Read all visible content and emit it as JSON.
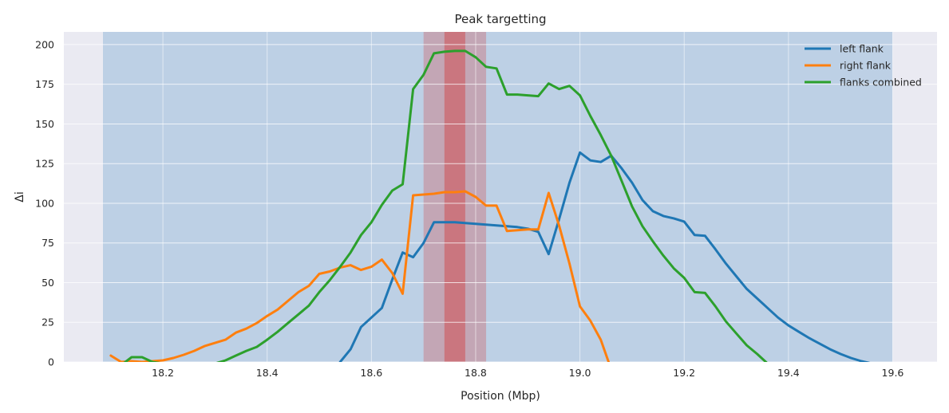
{
  "chart_data": {
    "type": "line",
    "title": "Peak targetting",
    "xlabel": "Position (Mbp)",
    "ylabel": "Δi",
    "xlim": [
      18.01,
      19.685
    ],
    "ylim": [
      0,
      208
    ],
    "xticks": [
      18.2,
      18.4,
      18.6,
      18.8,
      19.0,
      19.2,
      19.4,
      19.6
    ],
    "xtick_labels": [
      "18.2",
      "18.4",
      "18.6",
      "18.8",
      "19.0",
      "19.2",
      "19.4",
      "19.6"
    ],
    "yticks": [
      0,
      25,
      50,
      75,
      100,
      125,
      150,
      175,
      200
    ],
    "ytick_labels": [
      "0",
      "25",
      "50",
      "75",
      "100",
      "125",
      "150",
      "175",
      "200"
    ],
    "grid": true,
    "legend_position": "top-right",
    "spans": [
      {
        "from": 18.085,
        "to": 19.6,
        "color": "#1f77b4",
        "opacity": 0.22
      },
      {
        "from": 18.7,
        "to": 18.82,
        "color": "#d62728",
        "opacity": 0.25
      },
      {
        "from": 18.74,
        "to": 18.78,
        "color": "#d62728",
        "opacity": 0.38
      }
    ],
    "series": [
      {
        "name": "left flank",
        "color": "#1f77b4",
        "x": [
          18.54,
          18.56,
          18.58,
          18.6,
          18.62,
          18.64,
          18.66,
          18.68,
          18.7,
          18.72,
          18.74,
          18.76,
          18.78,
          18.8,
          18.82,
          18.84,
          18.86,
          18.88,
          18.9,
          18.92,
          18.94,
          18.96,
          18.98,
          19.0,
          19.02,
          19.04,
          19.06,
          19.08,
          19.1,
          19.12,
          19.14,
          19.16,
          19.18,
          19.2,
          19.22,
          19.24,
          19.26,
          19.28,
          19.3,
          19.32,
          19.34,
          19.36,
          19.38,
          19.4,
          19.42,
          19.44,
          19.46,
          19.48,
          19.5,
          19.52,
          19.54,
          19.56
        ],
        "y": [
          0,
          8,
          22,
          28,
          34,
          52,
          69,
          66,
          75,
          88,
          88,
          88,
          87.5,
          87,
          86.5,
          86,
          85.5,
          85,
          84,
          82,
          68,
          90,
          113,
          132,
          127,
          126,
          130,
          122,
          113,
          102,
          95,
          92,
          90.5,
          88.5,
          80,
          79.5,
          71,
          62,
          54,
          46,
          40,
          34,
          28,
          23,
          19,
          15,
          11.5,
          8,
          5,
          2.5,
          0.5,
          -1
        ]
      },
      {
        "name": "right flank",
        "color": "#ff7f0e",
        "x": [
          18.1,
          18.12,
          18.14,
          18.16,
          18.18,
          18.2,
          18.22,
          18.24,
          18.26,
          18.28,
          18.3,
          18.32,
          18.34,
          18.36,
          18.38,
          18.4,
          18.42,
          18.44,
          18.46,
          18.48,
          18.5,
          18.52,
          18.54,
          18.56,
          18.58,
          18.6,
          18.62,
          18.64,
          18.66,
          18.68,
          18.7,
          18.72,
          18.74,
          18.76,
          18.78,
          18.8,
          18.82,
          18.84,
          18.86,
          18.88,
          18.9,
          18.92,
          18.94,
          18.96,
          18.98,
          19.0,
          19.02,
          19.04,
          19.055
        ],
        "y": [
          4,
          0,
          0.5,
          0,
          0.5,
          1,
          2.5,
          4.5,
          7,
          10,
          12,
          14,
          18.5,
          21,
          24.5,
          29,
          33,
          38.5,
          44,
          48,
          55.5,
          57,
          59.5,
          61,
          58,
          60,
          64.5,
          56,
          43,
          105,
          105.5,
          106,
          107,
          107,
          107.5,
          104,
          98.5,
          98.5,
          82.5,
          83,
          83.5,
          83.5,
          106.5,
          86,
          62,
          35,
          26,
          14,
          0
        ]
      },
      {
        "name": "flanks combined",
        "color": "#2ca02c",
        "x": [
          18.1,
          18.12,
          18.14,
          18.16,
          18.18,
          18.2,
          18.22,
          18.24,
          18.26,
          18.28,
          18.3,
          18.32,
          18.34,
          18.36,
          18.38,
          18.4,
          18.42,
          18.44,
          18.46,
          18.48,
          18.5,
          18.52,
          18.54,
          18.56,
          18.58,
          18.6,
          18.62,
          18.64,
          18.66,
          18.68,
          18.7,
          18.72,
          18.74,
          18.76,
          18.78,
          18.8,
          18.82,
          18.84,
          18.86,
          18.88,
          18.9,
          18.92,
          18.94,
          18.96,
          18.98,
          19.0,
          19.02,
          19.04,
          19.06,
          19.08,
          19.1,
          19.12,
          19.14,
          19.16,
          19.18,
          19.2,
          19.22,
          19.24,
          19.26,
          19.28,
          19.3,
          19.32,
          19.34,
          19.36
        ],
        "y": [
          -4,
          -2,
          3,
          3,
          0,
          -1,
          -2,
          -4,
          -3,
          -2,
          -1,
          1,
          4,
          7,
          9.5,
          14,
          19,
          24.5,
          30,
          35.5,
          44,
          51.5,
          60,
          69,
          80,
          88,
          99,
          108,
          112,
          172,
          181,
          194.5,
          195.5,
          196,
          196,
          192,
          186,
          185,
          168.5,
          168.5,
          168,
          167.5,
          175.5,
          172,
          174,
          168,
          155,
          143,
          130,
          114,
          98,
          85.5,
          76,
          67,
          59,
          53,
          44,
          43.5,
          35,
          25.5,
          18,
          10.5,
          5,
          -1
        ]
      }
    ]
  }
}
